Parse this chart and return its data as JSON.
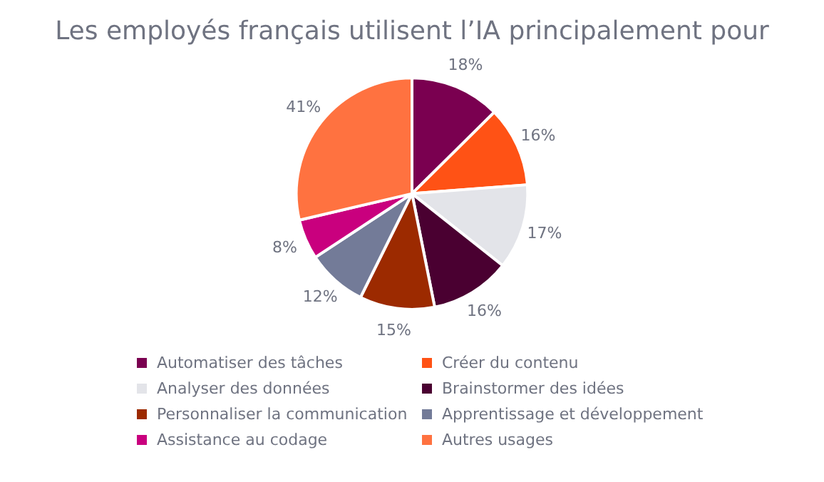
{
  "chart_data": {
    "type": "pie",
    "title": "Les employés français utilisent l’IA principalement pour",
    "categories": [
      "Automatiser des tâches",
      "Créer du contenu",
      "Analyser des données",
      "Brainstormer des idées",
      "Personnaliser la communication",
      "Apprentissage et développement",
      "Assistance au codage",
      "Autres usages"
    ],
    "values": [
      18,
      16,
      17,
      16,
      15,
      12,
      8,
      41
    ],
    "colors": [
      "#7a0050",
      "#ff5215",
      "#e3e4e9",
      "#4a0031",
      "#9c2a00",
      "#737b98",
      "#c9007e",
      "#ff7240"
    ],
    "value_labels": [
      "18%",
      "16%",
      "17%",
      "16%",
      "15%",
      "12%",
      "8%",
      "41%"
    ],
    "legend": "bottom"
  }
}
